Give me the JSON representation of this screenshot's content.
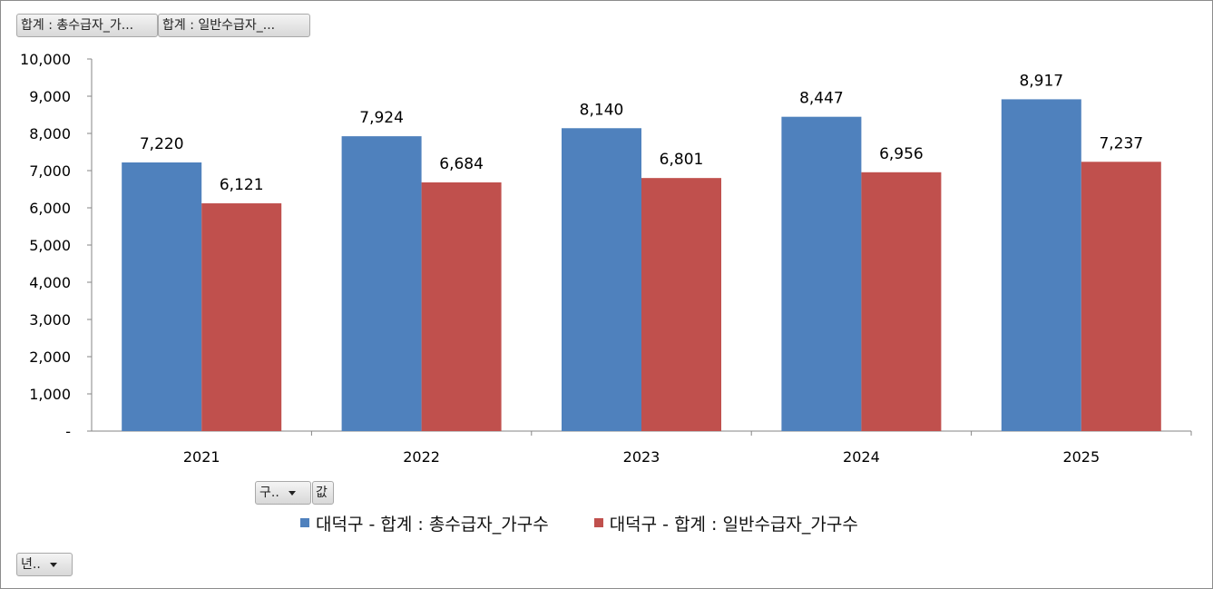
{
  "field_buttons": {
    "value_field_1": "합계 : 총수급자_가...",
    "value_field_2": "합계 : 일반수급자_...",
    "series_field": "구..",
    "values_field": "값",
    "category_field": "년.."
  },
  "colors": {
    "series_1": "#4f81bd",
    "series_2": "#c0504d"
  },
  "chart_data": {
    "type": "bar",
    "categories": [
      "2021",
      "2022",
      "2023",
      "2024",
      "2025"
    ],
    "series": [
      {
        "name": "대덕구 - 합계 : 총수급자_가구수",
        "values": [
          7220,
          7924,
          8140,
          8447,
          8917
        ]
      },
      {
        "name": "대덕구 - 합계 : 일반수급자_가구수",
        "values": [
          6121,
          6684,
          6801,
          6956,
          7237
        ]
      }
    ],
    "data_labels": [
      [
        "7,220",
        "7,924",
        "8,140",
        "8,447",
        "8,917"
      ],
      [
        "6,121",
        "6,684",
        "6,801",
        "6,956",
        "7,237"
      ]
    ],
    "y_ticks": [
      "-",
      "1,000",
      "2,000",
      "3,000",
      "4,000",
      "5,000",
      "6,000",
      "7,000",
      "8,000",
      "9,000",
      "10,000"
    ],
    "ylim": [
      0,
      10000
    ],
    "grid": false,
    "legend_position": "bottom"
  }
}
